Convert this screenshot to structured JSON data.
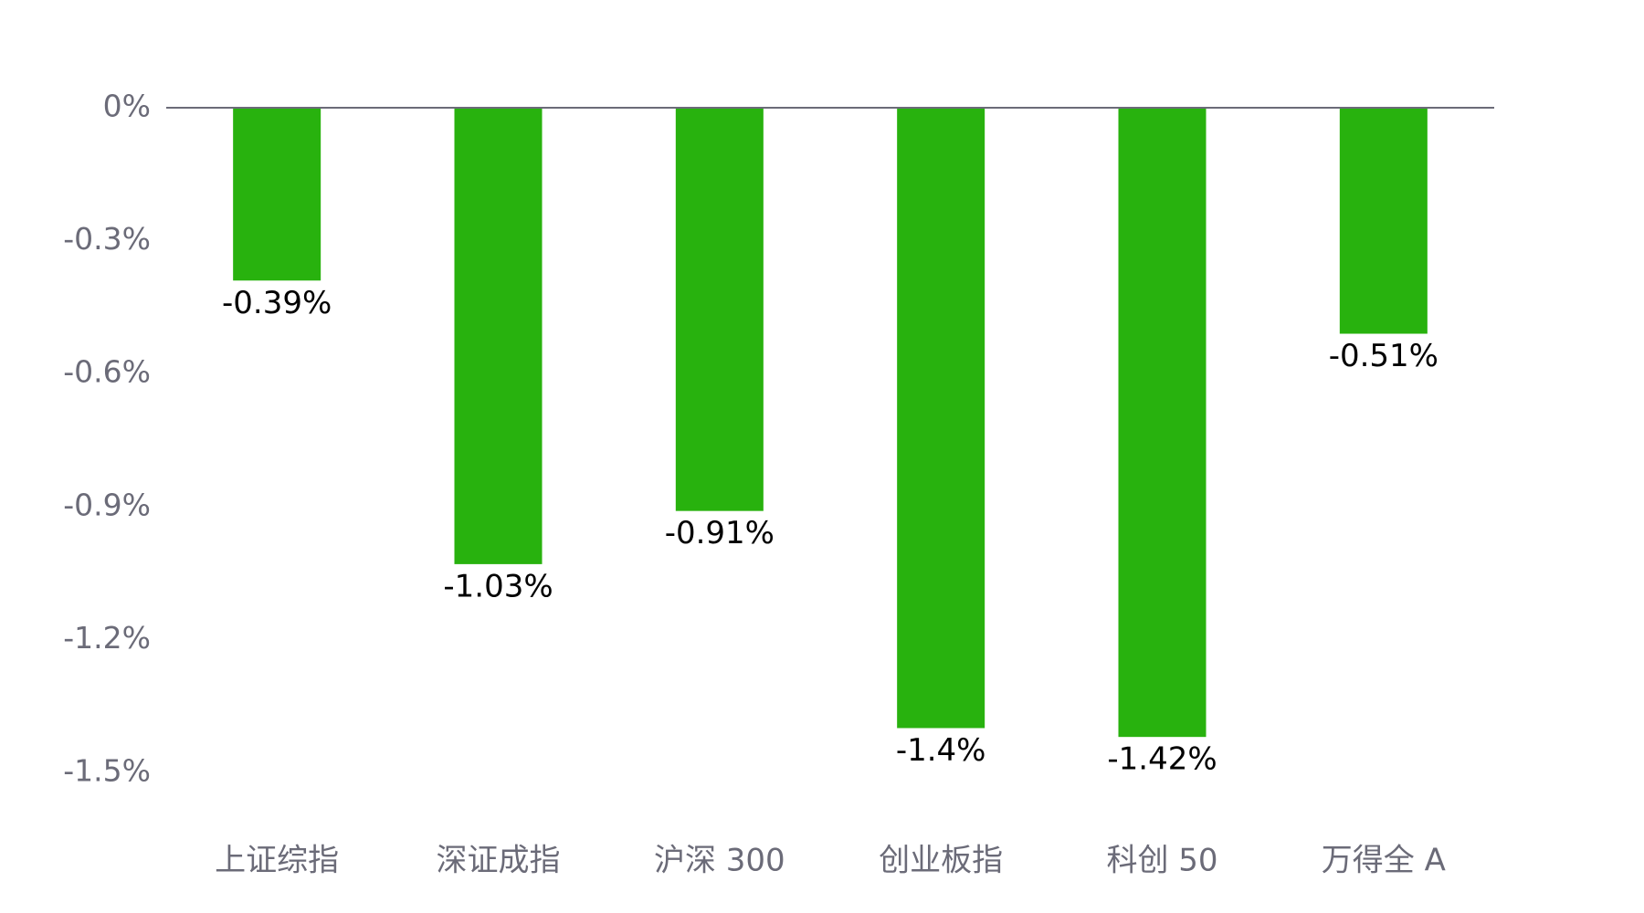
{
  "chart_data": {
    "type": "bar",
    "categories": [
      "上证综指",
      "深证成指",
      "沪深 300",
      "创业板指",
      "科创 50",
      "万得全 A"
    ],
    "values": [
      -0.39,
      -1.03,
      -0.91,
      -1.4,
      -1.42,
      -0.51
    ],
    "value_labels": [
      "-0.39%",
      "-1.03%",
      "-0.91%",
      "-1.4%",
      "-1.42%",
      "-0.51%"
    ],
    "color": "#28b20e",
    "ylim": [
      -1.5,
      0
    ],
    "yticks": [
      {
        "value": 0,
        "label": "0%"
      },
      {
        "value": -0.3,
        "label": "-0.3%"
      },
      {
        "value": -0.6,
        "label": "-0.6%"
      },
      {
        "value": -0.9,
        "label": "-0.9%"
      },
      {
        "value": -1.2,
        "label": "-1.2%"
      },
      {
        "value": -1.5,
        "label": "-1.5%"
      }
    ],
    "grid": false
  }
}
